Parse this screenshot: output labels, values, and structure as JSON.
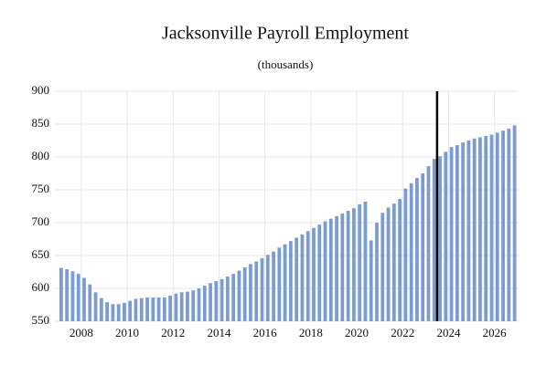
{
  "chart_data": {
    "type": "bar",
    "title": "Jacksonville Payroll Employment",
    "subtitle": "(thousands)",
    "x": [
      2007,
      2007.25,
      2007.5,
      2007.75,
      2008,
      2008.25,
      2008.5,
      2008.75,
      2009,
      2009.25,
      2009.5,
      2009.75,
      2010,
      2010.25,
      2010.5,
      2010.75,
      2011,
      2011.25,
      2011.5,
      2011.75,
      2012,
      2012.25,
      2012.5,
      2012.75,
      2013,
      2013.25,
      2013.5,
      2013.75,
      2014,
      2014.25,
      2014.5,
      2014.75,
      2015,
      2015.25,
      2015.5,
      2015.75,
      2016,
      2016.25,
      2016.5,
      2016.75,
      2017,
      2017.25,
      2017.5,
      2017.75,
      2018,
      2018.25,
      2018.5,
      2018.75,
      2019,
      2019.25,
      2019.5,
      2019.75,
      2020,
      2020.25,
      2020.5,
      2020.75,
      2021,
      2021.25,
      2021.5,
      2021.75,
      2022,
      2022.25,
      2022.5,
      2022.75,
      2023,
      2023.25,
      2023.5,
      2023.75,
      2024,
      2024.25,
      2024.5,
      2024.75,
      2025,
      2025.25,
      2025.5,
      2025.75,
      2026,
      2026.25,
      2026.5,
      2026.75
    ],
    "values": [
      631,
      629,
      626,
      622,
      616,
      606,
      594,
      585,
      579,
      576,
      576,
      578,
      581,
      584,
      585,
      586,
      586,
      586,
      586,
      589,
      592,
      594,
      595,
      597,
      600,
      604,
      608,
      611,
      614,
      618,
      622,
      627,
      632,
      637,
      641,
      646,
      651,
      656,
      662,
      667,
      672,
      677,
      682,
      687,
      692,
      697,
      702,
      706,
      710,
      714,
      718,
      722,
      728,
      732,
      673,
      700,
      715,
      723,
      729,
      736,
      752,
      760,
      768,
      775,
      786,
      797,
      801,
      808,
      815,
      818,
      822,
      825,
      828,
      830,
      832,
      834,
      837,
      840,
      843,
      848
    ],
    "color": "#7b9bd3",
    "vline": 2023.5,
    "xlim": [
      2006.85,
      2027.05
    ],
    "xticks": [
      2008,
      2010,
      2012,
      2014,
      2016,
      2018,
      2020,
      2022,
      2024,
      2026
    ],
    "ylim": [
      550,
      900
    ],
    "yticks": [
      550,
      600,
      650,
      700,
      750,
      800,
      850,
      900
    ],
    "grid": true
  }
}
